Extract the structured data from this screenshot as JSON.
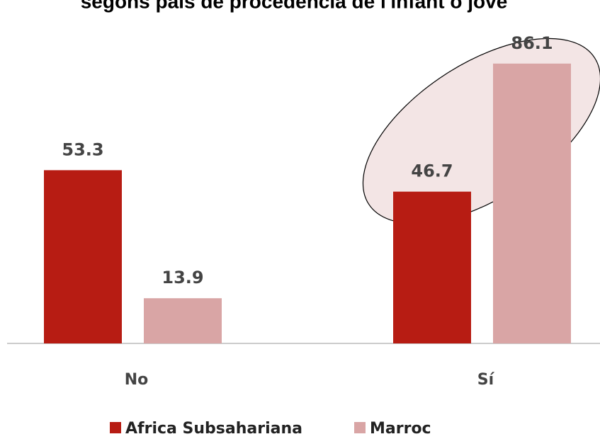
{
  "chart_data": {
    "type": "bar",
    "title": "segons país de procedència de l'infant o jove",
    "categories": [
      "No",
      "Sí"
    ],
    "series": [
      {
        "name": "Africa Subsahariana",
        "color": "#b71c13",
        "values": [
          53.3,
          46.7
        ]
      },
      {
        "name": "Marroc",
        "color": "#d9a5a5",
        "values": [
          13.9,
          86.1
        ]
      }
    ],
    "legend": "bottom"
  }
}
